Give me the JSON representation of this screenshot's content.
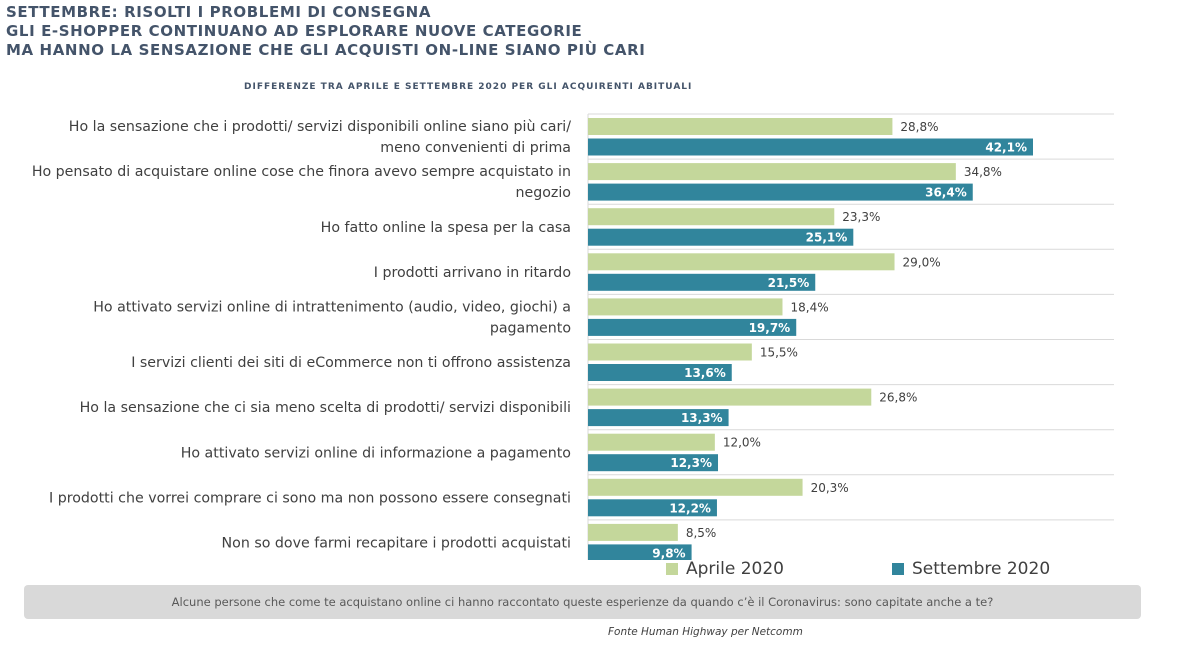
{
  "header": {
    "title_lines": [
      "SETTEMBRE: RISOLTI I PROBLEMI DI CONSEGNA",
      "GLI E-SHOPPER CONTINUANO AD ESPLORARE NUOVE CATEGORIE",
      "MA HANNO LA SENSAZIONE CHE GLI ACQUISTI ON-LINE SIANO PIÙ CARI"
    ],
    "subtitle": "DIFFERENZE TRA APRILE E SETTEMBRE 2020 PER GLI ACQUIRENTI ABITUALI"
  },
  "chart_data": {
    "type": "bar",
    "orientation": "horizontal",
    "title": "DIFFERENZE TRA APRILE E SETTEMBRE 2020 PER GLI ACQUIRENTI ABITUALI",
    "categories": [
      [
        "Ho la sensazione che i prodotti/ servizi disponibili online siano più cari/",
        "meno convenienti di prima"
      ],
      [
        "Ho pensato di acquistare online cose che finora avevo sempre acquistato in",
        "negozio"
      ],
      [
        "Ho fatto online la spesa per la casa"
      ],
      [
        "I prodotti arrivano in ritardo"
      ],
      [
        "Ho attivato servizi online di intrattenimento (audio, video, giochi) a",
        "pagamento"
      ],
      [
        "I servizi clienti dei siti di eCommerce non ti offrono assistenza"
      ],
      [
        "Ho la sensazione che ci sia meno scelta di prodotti/ servizi disponibili"
      ],
      [
        "Ho attivato servizi online di informazione a pagamento"
      ],
      [
        "I prodotti che vorrei comprare ci sono ma non possono essere consegnati"
      ],
      [
        "Non so dove farmi recapitare i prodotti acquistati"
      ]
    ],
    "series": [
      {
        "name": "Aprile 2020",
        "color": "#c4d79b",
        "values": [
          28.8,
          34.8,
          23.3,
          29.0,
          18.4,
          15.5,
          26.8,
          12.0,
          20.3,
          8.5
        ],
        "labels": [
          "28,8%",
          "34,8%",
          "23,3%",
          "29,0%",
          "18,4%",
          "15,5%",
          "26,8%",
          "12,0%",
          "20,3%",
          "8,5%"
        ]
      },
      {
        "name": "Settembre 2020",
        "color": "#31859c",
        "values": [
          42.1,
          36.4,
          25.1,
          21.5,
          19.7,
          13.6,
          13.3,
          12.3,
          12.2,
          9.8
        ],
        "labels": [
          "42,1%",
          "36,4%",
          "25,1%",
          "21,5%",
          "19,7%",
          "13,6%",
          "13,3%",
          "12,3%",
          "12,2%",
          "9,8%"
        ]
      }
    ],
    "xlim": [
      0,
      50
    ],
    "legend_position": "bottom"
  },
  "footer": {
    "question": "Alcune persone che come te acquistano online ci hanno raccontato queste esperienze da quando c’è il Coronavirus: sono capitate anche a te?",
    "source": "Fonte Human Highway per Netcomm"
  }
}
